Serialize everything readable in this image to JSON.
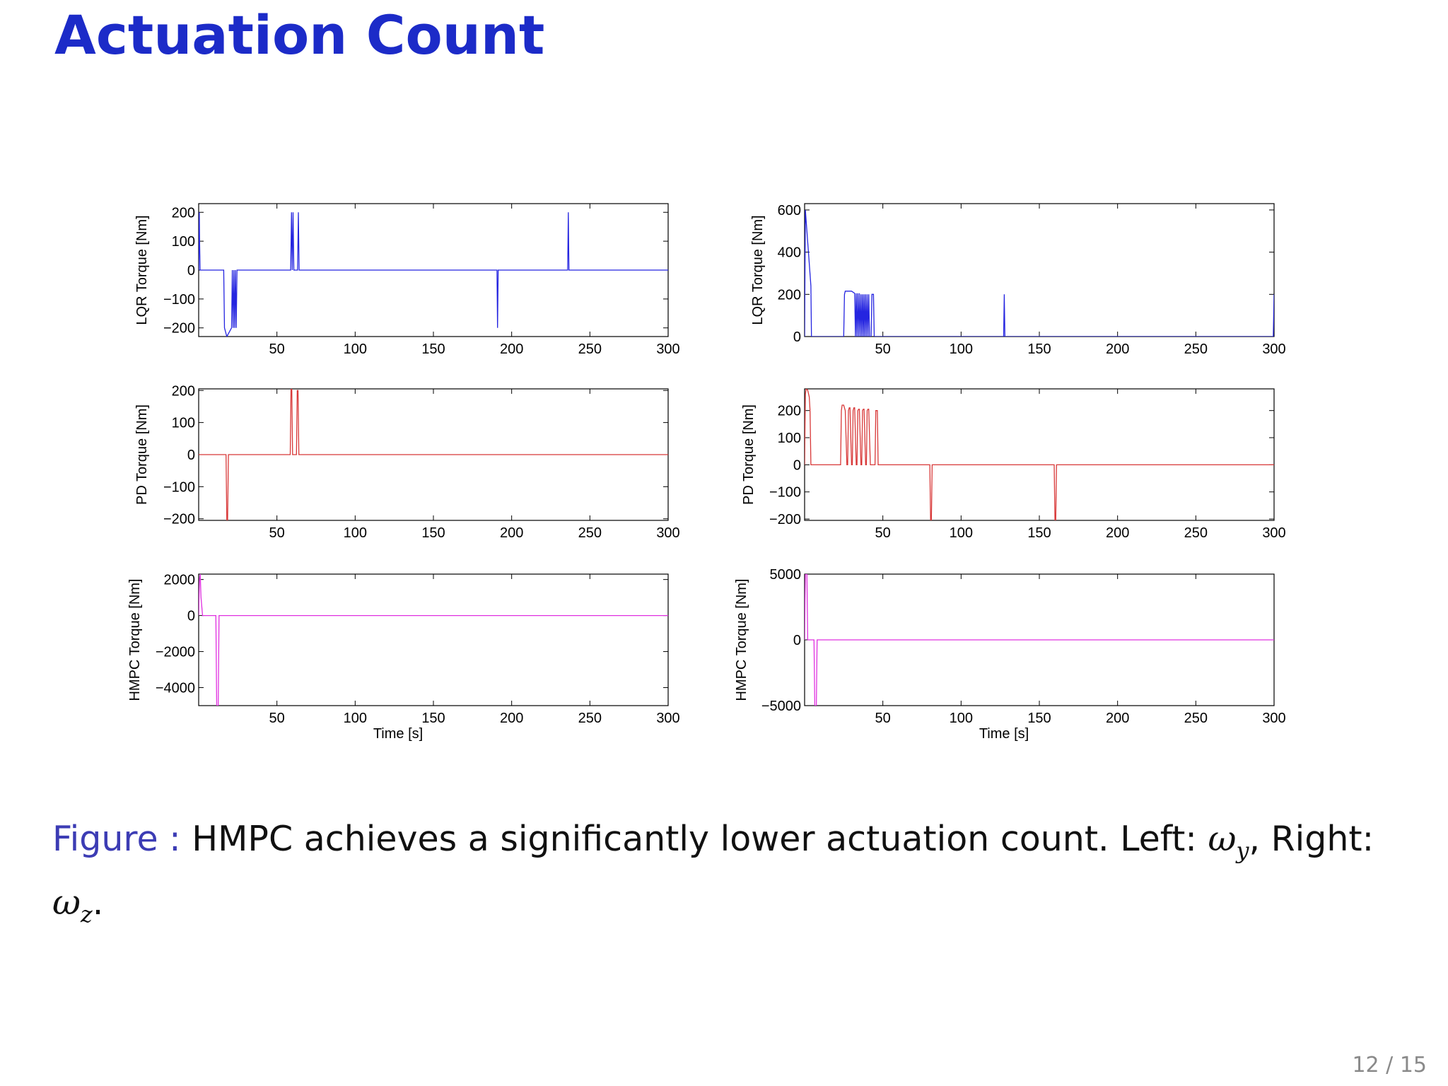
{
  "slide": {
    "title": "Actuation Count",
    "page_current": "12",
    "page_total": "15"
  },
  "caption": {
    "label": "Figure :",
    "text": "HMPC achieves a significantly lower actuation count. Left: ",
    "omega_y": "ω",
    "sub_y": "y",
    "mid": ", Right:",
    "omega_z": "ω",
    "sub_z": "z",
    "end": "."
  },
  "colors": {
    "lqr": "#2525e0",
    "pd": "#d83838",
    "hmpc": "#e030e0",
    "axes": "#000000",
    "title": "#1c2bc8"
  },
  "chart_data": [
    {
      "id": "left-lqr",
      "type": "line",
      "ylabel": "LQR Torque [Nm]",
      "xlabel": "",
      "xlim": [
        0,
        300
      ],
      "ylim": [
        -230,
        230
      ],
      "xticks": [
        50,
        100,
        150,
        200,
        250,
        300
      ],
      "yticks": [
        -200,
        -100,
        0,
        100,
        200
      ],
      "color": "lqr",
      "x": [
        0,
        0.4,
        0.6,
        0.9,
        1.2,
        16,
        16.5,
        17,
        18,
        20,
        21,
        21.5,
        22,
        22.5,
        23,
        23.5,
        24,
        24.5,
        58.8,
        59.3,
        59.8,
        60.3,
        60.8,
        61.3,
        63.2,
        63.7,
        64.2,
        190.6,
        191,
        191.4,
        235.8,
        236.2,
        236.6,
        300
      ],
      "y": [
        0,
        200,
        100,
        0,
        0,
        0,
        -200,
        -210,
        -230,
        -210,
        -200,
        0,
        -200,
        0,
        -200,
        0,
        -200,
        0,
        0,
        200,
        0,
        200,
        0,
        0,
        0,
        200,
        0,
        0,
        -200,
        0,
        0,
        200,
        0,
        0
      ]
    },
    {
      "id": "left-pd",
      "type": "line",
      "ylabel": "PD Torque [Nm]",
      "xlabel": "",
      "xlim": [
        0,
        300
      ],
      "ylim": [
        -205,
        205
      ],
      "xticks": [
        50,
        100,
        150,
        200,
        250,
        300
      ],
      "yticks": [
        -200,
        -100,
        0,
        100,
        200
      ],
      "color": "pd",
      "x": [
        0,
        17.5,
        18,
        18.5,
        19,
        58.5,
        59,
        59.5,
        60,
        62.5,
        63,
        63.5,
        64,
        300
      ],
      "y": [
        0,
        0,
        -205,
        -205,
        0,
        0,
        205,
        205,
        0,
        0,
        200,
        200,
        0,
        0
      ]
    },
    {
      "id": "left-hmpc",
      "type": "line",
      "ylabel": "HMPC Torque [Nm]",
      "xlabel": "Time [s]",
      "xlim": [
        0,
        300
      ],
      "ylim": [
        -5000,
        2300
      ],
      "xticks": [
        50,
        100,
        150,
        200,
        250,
        300
      ],
      "yticks": [
        -4000,
        -2000,
        0,
        2000
      ],
      "color": "hmpc",
      "x": [
        0,
        0.5,
        1,
        1.5,
        2.5,
        11,
        11.5,
        12,
        12.5,
        13,
        300
      ],
      "y": [
        0,
        2000,
        2300,
        1000,
        0,
        0,
        -5000,
        -5000,
        -5000,
        0,
        0
      ]
    },
    {
      "id": "right-lqr",
      "type": "line",
      "ylabel": "LQR Torque [Nm]",
      "xlabel": "",
      "xlim": [
        0,
        300
      ],
      "ylim": [
        0,
        630
      ],
      "xticks": [
        50,
        100,
        150,
        200,
        250,
        300
      ],
      "yticks": [
        0,
        200,
        400,
        600
      ],
      "color": "lqr",
      "x": [
        0,
        0.5,
        4,
        4.4,
        25,
        25.5,
        26,
        30,
        32,
        32.5,
        33,
        33.5,
        34,
        34.5,
        35,
        35.5,
        36,
        36.5,
        37,
        37.5,
        38,
        38.5,
        39,
        39.5,
        40,
        40.5,
        41,
        41.5,
        42.5,
        43,
        44,
        44.5,
        45,
        127.2,
        127.6,
        128,
        299.5,
        300
      ],
      "y": [
        0,
        600,
        240,
        0,
        0,
        200,
        215,
        215,
        205,
        0,
        205,
        0,
        205,
        0,
        205,
        0,
        200,
        0,
        200,
        0,
        200,
        0,
        200,
        0,
        200,
        0,
        200,
        0,
        0,
        200,
        200,
        0,
        0,
        0,
        200,
        0,
        0,
        200
      ]
    },
    {
      "id": "right-pd",
      "type": "line",
      "ylabel": "PD Torque [Nm]",
      "xlabel": "",
      "xlim": [
        0,
        300
      ],
      "ylim": [
        -205,
        280
      ],
      "xticks": [
        50,
        100,
        150,
        200,
        250,
        300
      ],
      "yticks": [
        -200,
        -100,
        0,
        100,
        200
      ],
      "color": "pd",
      "x": [
        0,
        0.5,
        1,
        2,
        3,
        3.5,
        4,
        23,
        23.5,
        24,
        25,
        26,
        27,
        27.5,
        28,
        28.5,
        29,
        30,
        30.5,
        31,
        31.5,
        32,
        33,
        33.5,
        34,
        34.5,
        35,
        36,
        36.5,
        37,
        37.5,
        38,
        39,
        39.5,
        40,
        40.5,
        41,
        42,
        42.5,
        43,
        45,
        45.5,
        46,
        46.5,
        47,
        80,
        80.5,
        81,
        81.5,
        159.5,
        160,
        160.5,
        161,
        300
      ],
      "y": [
        0,
        260,
        280,
        275,
        250,
        200,
        0,
        0,
        200,
        220,
        220,
        200,
        0,
        0,
        200,
        210,
        210,
        0,
        0,
        200,
        210,
        210,
        0,
        0,
        200,
        205,
        205,
        0,
        0,
        200,
        205,
        205,
        0,
        0,
        200,
        205,
        205,
        0,
        0,
        0,
        0,
        200,
        200,
        200,
        0,
        0,
        -205,
        -205,
        0,
        0,
        -205,
        -205,
        0,
        0
      ]
    },
    {
      "id": "right-hmpc",
      "type": "line",
      "ylabel": "HMPC Torque [Nm]",
      "xlabel": "Time [s]",
      "xlim": [
        0,
        300
      ],
      "ylim": [
        -5000,
        5000
      ],
      "xticks": [
        50,
        100,
        150,
        200,
        250,
        300
      ],
      "yticks": [
        -5000,
        0,
        5000
      ],
      "color": "hmpc",
      "x": [
        0,
        0.5,
        1.5,
        2,
        6,
        6.5,
        7,
        7.5,
        8,
        8.5,
        300
      ],
      "y": [
        0,
        5000,
        5000,
        0,
        0,
        -5000,
        -5000,
        -5000,
        0,
        0,
        0
      ]
    }
  ]
}
